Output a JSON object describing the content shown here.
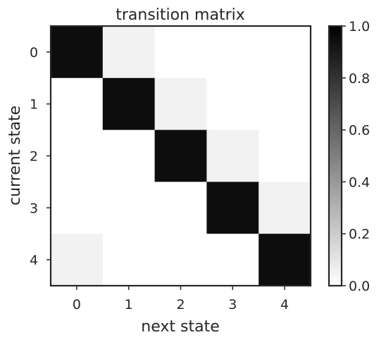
{
  "chart_data": {
    "type": "heatmap",
    "title": "transition matrix",
    "xlabel": "next state",
    "ylabel": "current state",
    "x_categories": [
      "0",
      "1",
      "2",
      "3",
      "4"
    ],
    "y_categories": [
      "0",
      "1",
      "2",
      "3",
      "4"
    ],
    "values": [
      [
        0.95,
        0.05,
        0.0,
        0.0,
        0.0
      ],
      [
        0.0,
        0.95,
        0.05,
        0.0,
        0.0
      ],
      [
        0.0,
        0.0,
        0.95,
        0.05,
        0.0
      ],
      [
        0.0,
        0.0,
        0.0,
        0.95,
        0.05
      ],
      [
        0.05,
        0.0,
        0.0,
        0.0,
        0.95
      ]
    ],
    "colormap": "gray_r",
    "colorbar": {
      "vmin": 0.0,
      "vmax": 1.0,
      "ticks": [
        0.0,
        0.2,
        0.4,
        0.6,
        0.8,
        1.0
      ],
      "tick_labels": [
        "0.0",
        "0.2",
        "0.4",
        "0.6",
        "0.8",
        "1.0"
      ]
    },
    "colors": {
      "low": "#ffffff",
      "high": "#000000",
      "axis": "#262626"
    },
    "grid": false
  }
}
